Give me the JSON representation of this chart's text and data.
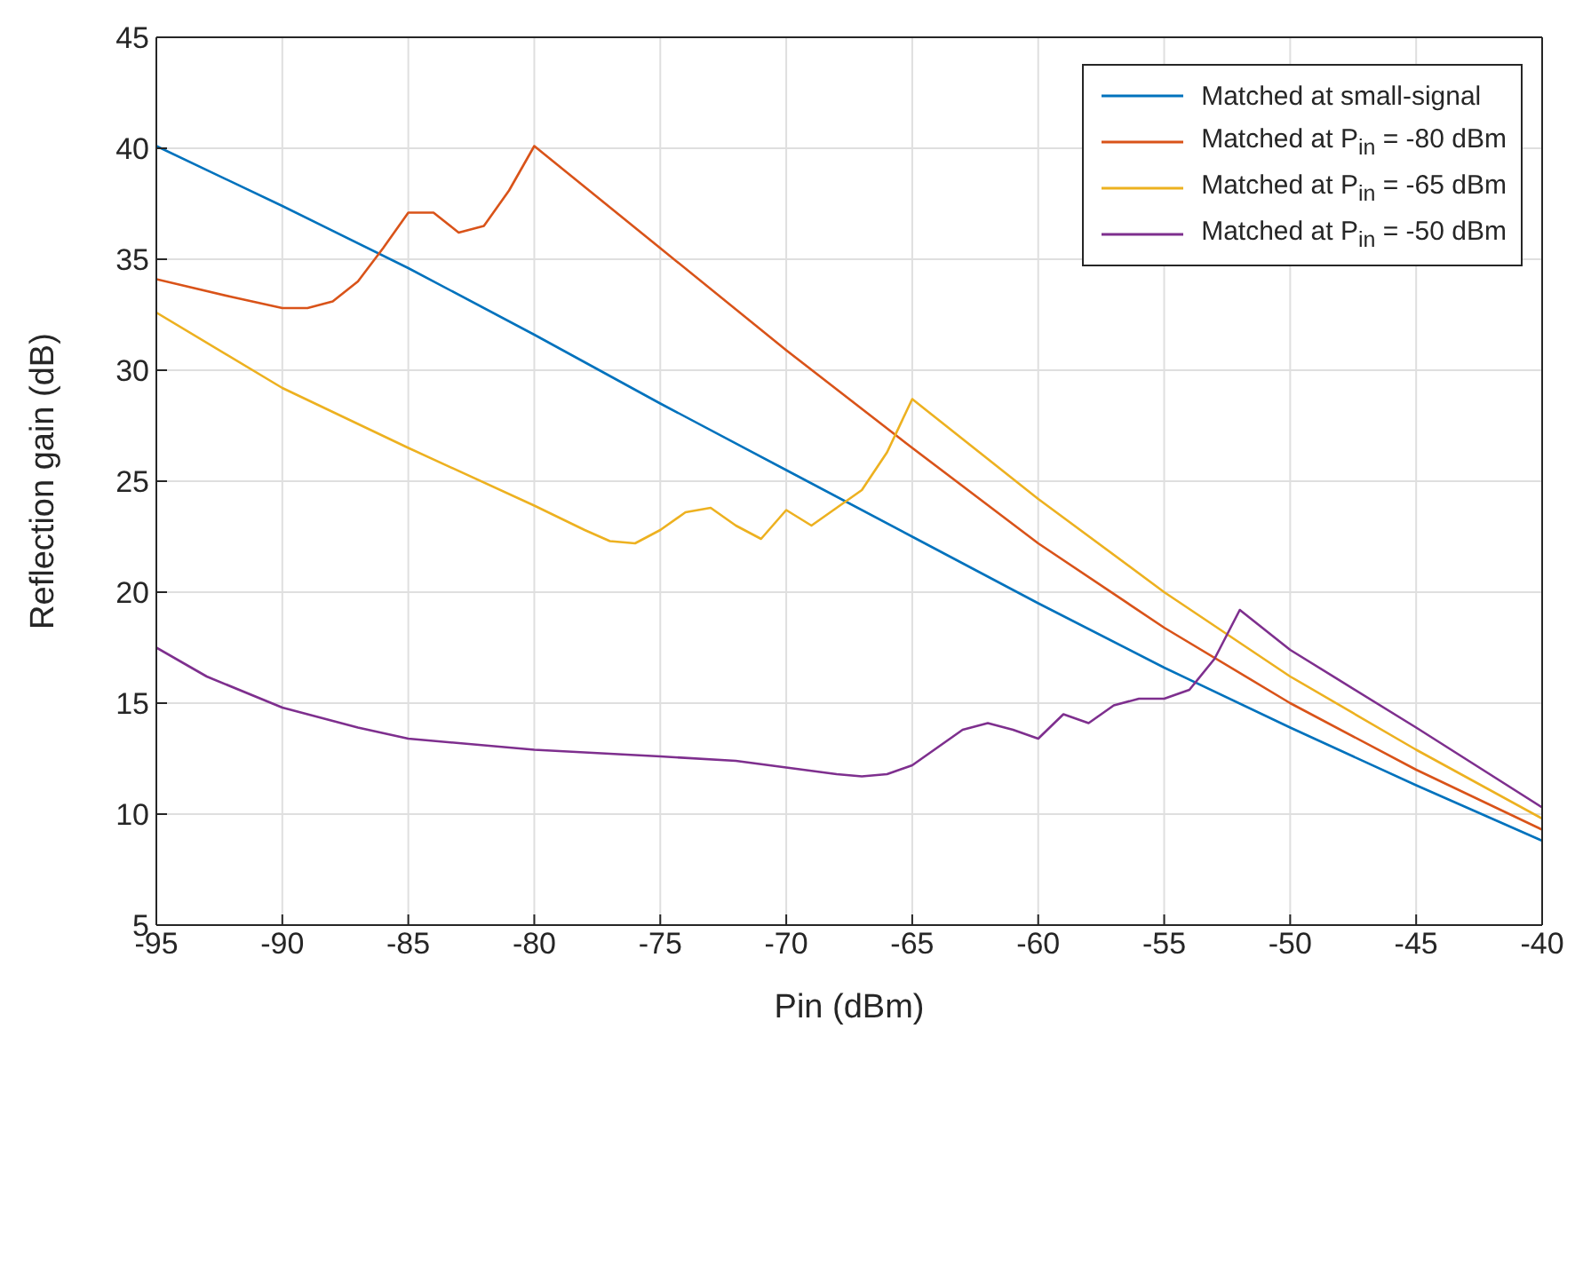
{
  "chart_data": {
    "type": "line",
    "xlabel": "Pin (dBm)",
    "ylabel": "Reflection gain (dB)",
    "xlim": [
      -95,
      -40
    ],
    "xticks": [
      -95,
      -90,
      -85,
      -80,
      -75,
      -70,
      -65,
      -60,
      -55,
      -50,
      -45,
      -40
    ],
    "ylim": [
      5,
      45
    ],
    "yticks": [
      5,
      10,
      15,
      20,
      25,
      30,
      35,
      40,
      45
    ],
    "grid": true,
    "legend": "top right",
    "marker": "none",
    "line_style": "solid",
    "series": [
      {
        "name": "Matched at small-signal",
        "color": "#0072bd",
        "x": [
          -95,
          -90,
          -85,
          -80,
          -75,
          -70,
          -65,
          -60,
          -55,
          -50,
          -45,
          -40
        ],
        "values": [
          40.1,
          37.4,
          34.6,
          31.6,
          28.5,
          25.5,
          22.5,
          19.5,
          16.6,
          13.9,
          11.3,
          8.8
        ]
      },
      {
        "name": "Matched at P$_{in}$ = -80 dBm",
        "color": "#d95319",
        "x": [
          -95,
          -92,
          -90,
          -89,
          -88,
          -87,
          -86,
          -85,
          -84,
          -83,
          -82,
          -81,
          -80,
          -75,
          -70,
          -65,
          -60,
          -55,
          -50,
          -45,
          -40
        ],
        "values": [
          34.1,
          33.3,
          32.8,
          32.8,
          33.1,
          34,
          35.5,
          37.1,
          37.1,
          36.2,
          36.5,
          38.1,
          40.1,
          35.5,
          30.9,
          26.5,
          22.2,
          18.4,
          15,
          12,
          9.3
        ]
      },
      {
        "name": "Matched at P$_{in}$ = -65 dBm",
        "color": "#edb120",
        "x": [
          -95,
          -90,
          -85,
          -80,
          -78,
          -77,
          -76,
          -75,
          -74,
          -73,
          -72,
          -71,
          -70,
          -69,
          -68,
          -67,
          -66,
          -65,
          -60,
          -55,
          -50,
          -45,
          -40
        ],
        "values": [
          32.6,
          29.2,
          26.5,
          23.9,
          22.8,
          22.3,
          22.2,
          22.8,
          23.6,
          23.8,
          23,
          22.4,
          23.7,
          23,
          23.8,
          24.6,
          26.3,
          28.7,
          24.2,
          20,
          16.2,
          12.9,
          9.8
        ]
      },
      {
        "name": "Matched at P$_{in}$ = -50 dBm",
        "color": "#7e2f8e",
        "x": [
          -95,
          -93,
          -90,
          -87,
          -85,
          -80,
          -75,
          -72,
          -70,
          -68,
          -67,
          -66,
          -65,
          -64,
          -63,
          -62,
          -61,
          -60,
          -59,
          -58,
          -57,
          -56,
          -55,
          -54,
          -53,
          -52,
          -50,
          -45,
          -40
        ],
        "values": [
          17.5,
          16.2,
          14.8,
          13.9,
          13.4,
          12.9,
          12.6,
          12.4,
          12.1,
          11.8,
          11.7,
          11.8,
          12.2,
          13,
          13.8,
          14.1,
          13.8,
          13.4,
          14.5,
          14.1,
          14.9,
          15.2,
          15.2,
          15.6,
          17,
          19.2,
          17.4,
          13.9,
          10.3
        ]
      }
    ]
  }
}
